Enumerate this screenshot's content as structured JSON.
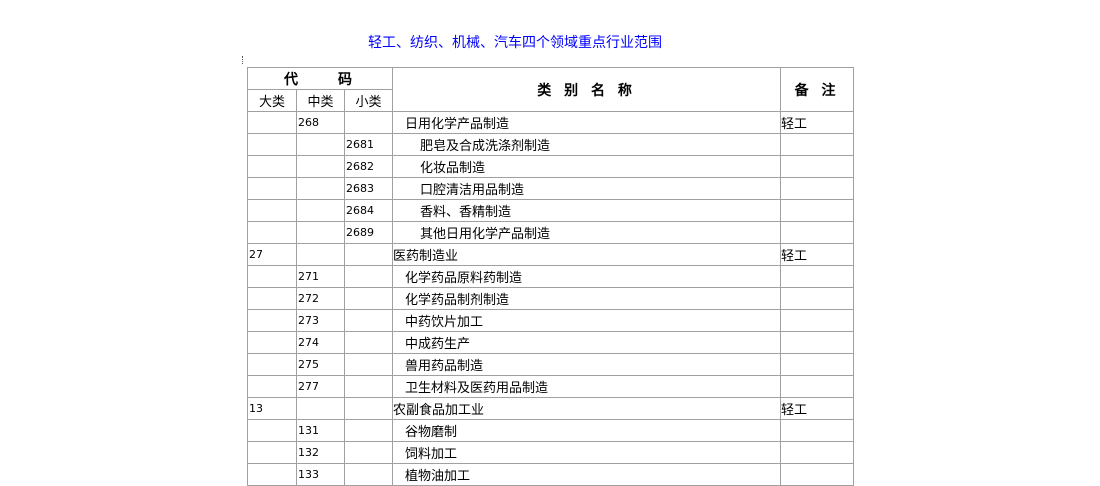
{
  "title": "轻工、纺织、机械、汽车四个领域重点行业范围",
  "header": {
    "code": "代　　码",
    "major": "大类",
    "medium": "中类",
    "minor": "小类",
    "name": "类 别 名 称",
    "note": "备 注"
  },
  "rows": [
    {
      "major": "",
      "medium": "268",
      "minor": "",
      "name": "日用化学产品制造",
      "level": 1,
      "note": "轻工"
    },
    {
      "major": "",
      "medium": "",
      "minor": "2681",
      "name": "肥皂及合成洗涤剂制造",
      "level": 2,
      "note": ""
    },
    {
      "major": "",
      "medium": "",
      "minor": "2682",
      "name": "化妆品制造",
      "level": 2,
      "note": ""
    },
    {
      "major": "",
      "medium": "",
      "minor": "2683",
      "name": "口腔清洁用品制造",
      "level": 2,
      "note": ""
    },
    {
      "major": "",
      "medium": "",
      "minor": "2684",
      "name": "香料、香精制造",
      "level": 2,
      "note": ""
    },
    {
      "major": "",
      "medium": "",
      "minor": "2689",
      "name": "其他日用化学产品制造",
      "level": 2,
      "note": ""
    },
    {
      "major": "27",
      "medium": "",
      "minor": "",
      "name": "医药制造业",
      "level": 0,
      "note": "轻工"
    },
    {
      "major": "",
      "medium": "271",
      "minor": "",
      "name": "化学药品原料药制造",
      "level": 1,
      "note": ""
    },
    {
      "major": "",
      "medium": "272",
      "minor": "",
      "name": "化学药品制剂制造",
      "level": 1,
      "note": ""
    },
    {
      "major": "",
      "medium": "273",
      "minor": "",
      "name": "中药饮片加工",
      "level": 1,
      "note": ""
    },
    {
      "major": "",
      "medium": "274",
      "minor": "",
      "name": "中成药生产",
      "level": 1,
      "note": ""
    },
    {
      "major": "",
      "medium": "275",
      "minor": "",
      "name": "兽用药品制造",
      "level": 1,
      "note": ""
    },
    {
      "major": "",
      "medium": "277",
      "minor": "",
      "name": "卫生材料及医药用品制造",
      "level": 1,
      "note": ""
    },
    {
      "major": "13",
      "medium": "",
      "minor": "",
      "name": "农副食品加工业",
      "level": 0,
      "note": "轻工"
    },
    {
      "major": "",
      "medium": "131",
      "minor": "",
      "name": "谷物磨制",
      "level": 1,
      "note": ""
    },
    {
      "major": "",
      "medium": "132",
      "minor": "",
      "name": "饲料加工",
      "level": 1,
      "note": ""
    },
    {
      "major": "",
      "medium": "133",
      "minor": "",
      "name": "植物油加工",
      "level": 1,
      "note": ""
    }
  ]
}
